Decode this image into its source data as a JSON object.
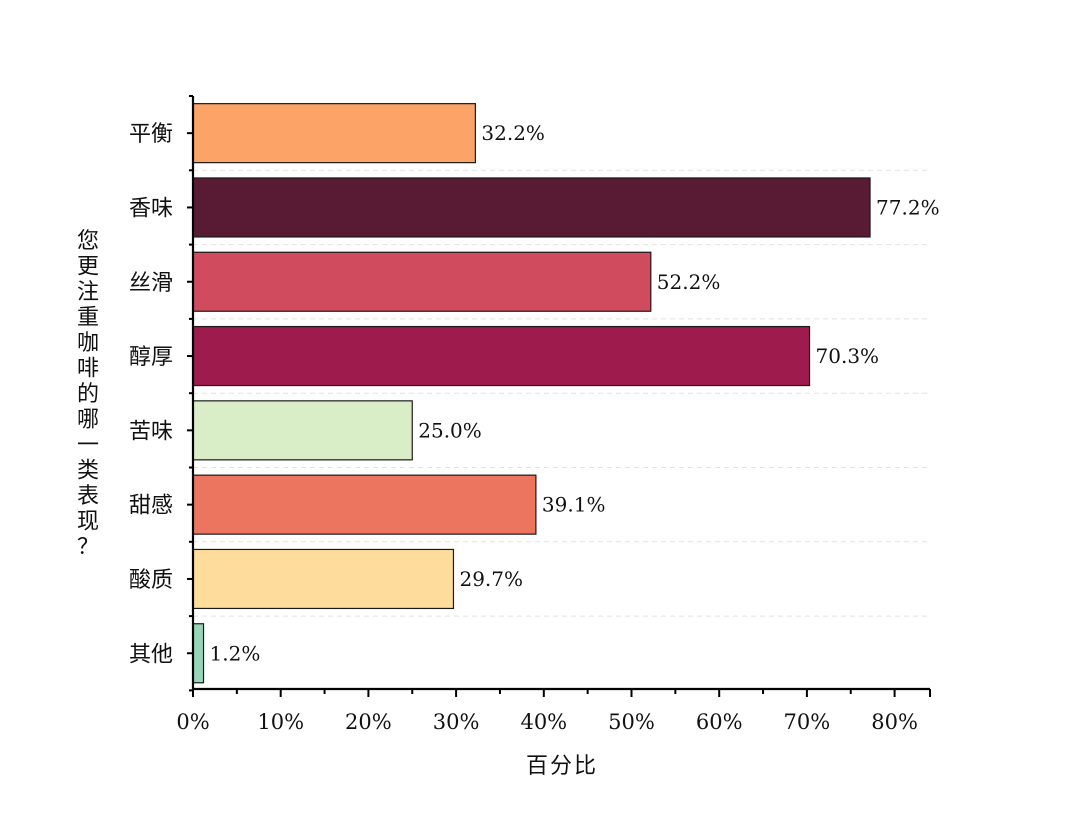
{
  "chart_data": {
    "type": "bar",
    "orientation": "horizontal",
    "categories": [
      "平衡",
      "香味",
      "丝滑",
      "醇厚",
      "苦味",
      "甜感",
      "酸质",
      "其他"
    ],
    "values": [
      32.2,
      77.2,
      52.2,
      70.3,
      25.0,
      39.1,
      29.7,
      1.2
    ],
    "data_labels": [
      "32.2%",
      "77.2%",
      "52.2%",
      "70.3%",
      "25.0%",
      "39.1%",
      "29.7%",
      "1.2%"
    ],
    "colors": [
      "#fca468",
      "#581b33",
      "#d14b5f",
      "#9e1b4d",
      "#d9eec6",
      "#ec7560",
      "#fedc9c",
      "#97d4b8"
    ],
    "xlabel": "百分比",
    "ylabel": "您更注重咖啡的哪一类表现？",
    "xlim": [
      0,
      84
    ],
    "x_ticks": [
      0,
      10,
      20,
      30,
      40,
      50,
      60,
      70,
      80
    ],
    "x_tick_labels": [
      "0%",
      "10%",
      "20%",
      "30%",
      "40%",
      "50%",
      "60%",
      "70%",
      "80%"
    ],
    "grid": "dashed horizontal between bars",
    "legend": "none"
  }
}
